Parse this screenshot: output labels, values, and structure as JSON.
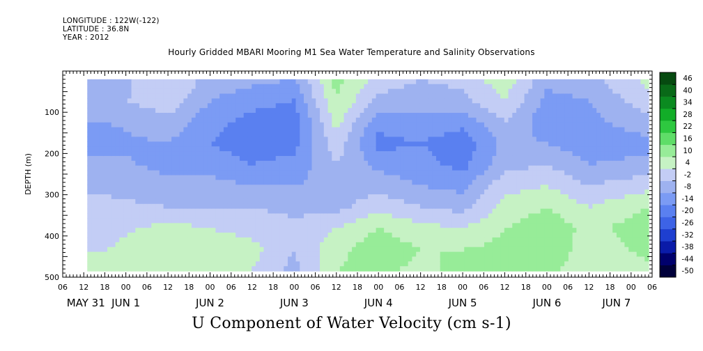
{
  "header": {
    "longitude": "LONGITUDE : 122W(-122)",
    "latitude": "LATITUDE : 36.8N",
    "year": "YEAR : 2012"
  },
  "chart_data": {
    "type": "heatmap",
    "title": "Hourly Gridded MBARI Mooring M1 Sea Water Temperature and Salinity Observations",
    "xlabel": "U Component of Water Velocity (cm s-1)",
    "ylabel": "DEPTH (m)",
    "x_range": [
      "2012-05-31 06:00",
      "2012-06-07 06:00"
    ],
    "data_time_range": [
      "2012-05-31 13:00",
      "2012-06-07 05:00"
    ],
    "ylim": [
      500,
      0
    ],
    "data_depth_range": [
      20,
      485
    ],
    "y_ticks": [
      100,
      200,
      300,
      400,
      500
    ],
    "x_hour_ticks": [
      "06",
      "12",
      "18",
      "00",
      "06",
      "12",
      "18",
      "00",
      "06",
      "12",
      "18",
      "00",
      "06",
      "12",
      "18",
      "00",
      "06",
      "12",
      "18",
      "00",
      "06",
      "12",
      "18",
      "00",
      "06",
      "12",
      "18",
      "00",
      "06"
    ],
    "x_day_labels": [
      "MAY 31",
      "JUN  1",
      "JUN  2",
      "JUN  3",
      "JUN  4",
      "JUN  5",
      "JUN  6",
      "JUN  7"
    ],
    "colorbar": {
      "levels": [
        -50,
        -44,
        -38,
        -32,
        -26,
        -20,
        -14,
        -8,
        -2,
        4,
        10,
        16,
        22,
        28,
        34,
        40,
        46
      ],
      "labels": [
        "46",
        "40",
        "34",
        "28",
        "22",
        "16",
        "10",
        "4",
        "-2",
        "-8",
        "-14",
        "-20",
        "-26",
        "-32",
        "-38",
        "-44",
        "-50"
      ],
      "colors": [
        "#00003a",
        "#00006c",
        "#0a1ba8",
        "#1e3fd0",
        "#3d63e6",
        "#5a80f0",
        "#7b9bf4",
        "#9eb2f0",
        "#c3cdf5",
        "#c6f2c4",
        "#97ec98",
        "#5fdd68",
        "#2ec840",
        "#12ad28",
        "#0b8a20",
        "#096a18",
        "#064a10"
      ]
    },
    "time_profile": [
      {
        "hour": 13,
        "u": [
          -6,
          -4,
          -8,
          -10,
          -6,
          -4,
          0,
          2,
          4,
          6
        ]
      },
      {
        "hour": 30,
        "u": [
          4,
          2,
          -4,
          -8,
          -10,
          -6,
          -2,
          6,
          10,
          8
        ]
      },
      {
        "hour": 42,
        "u": [
          -4,
          -8,
          -12,
          -14,
          -10,
          -6,
          -2,
          4,
          8,
          10
        ]
      },
      {
        "hour": 54,
        "u": [
          -6,
          -12,
          -16,
          -18,
          -14,
          -8,
          -2,
          2,
          6,
          4
        ]
      },
      {
        "hour": 66,
        "u": [
          -8,
          -14,
          -18,
          -16,
          -12,
          -8,
          -4,
          0,
          -2,
          -4
        ]
      },
      {
        "hour": 78,
        "u": [
          12,
          10,
          6,
          2,
          -2,
          -6,
          -4,
          4,
          8,
          10
        ]
      },
      {
        "hour": 90,
        "u": [
          2,
          -4,
          -12,
          -16,
          -10,
          -4,
          2,
          10,
          14,
          12
        ]
      },
      {
        "hour": 102,
        "u": [
          -2,
          -6,
          -10,
          -14,
          -12,
          -8,
          -2,
          6,
          10,
          8
        ]
      },
      {
        "hour": 114,
        "u": [
          0,
          -4,
          -12,
          -18,
          -16,
          -10,
          -4,
          4,
          10,
          12
        ]
      },
      {
        "hour": 126,
        "u": [
          8,
          4,
          -2,
          -6,
          -4,
          2,
          6,
          10,
          12,
          10
        ]
      },
      {
        "hour": 138,
        "u": [
          -6,
          -10,
          -12,
          -8,
          -2,
          4,
          10,
          14,
          16,
          12
        ]
      },
      {
        "hour": 150,
        "u": [
          -4,
          -8,
          -10,
          -12,
          -8,
          -2,
          4,
          8,
          6,
          4
        ]
      },
      {
        "hour": 167,
        "u": [
          6,
          2,
          -4,
          -10,
          -6,
          2,
          10,
          14,
          12,
          8
        ]
      }
    ]
  }
}
